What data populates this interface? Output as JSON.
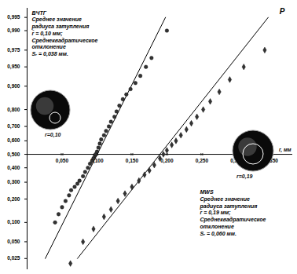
{
  "chart_data": {
    "type": "scatter",
    "x_label": "r, мм",
    "y_label": "P",
    "xlim": [
      0,
      0.38
    ],
    "xticks": [
      {
        "value": 0.05,
        "label": "0,050"
      },
      {
        "value": 0.1,
        "label": "0,100"
      },
      {
        "value": 0.15,
        "label": "0,150"
      },
      {
        "value": 0.2,
        "label": "0,200"
      },
      {
        "value": 0.25,
        "label": "0,250"
      },
      {
        "value": 0.3,
        "label": "0,300"
      },
      {
        "value": 0.35,
        "label": "0,350"
      }
    ],
    "ylim": [
      0.015,
      0.997
    ],
    "yticks": [
      {
        "value": 0.025,
        "label": "0,025"
      },
      {
        "value": 0.05,
        "label": "0,050"
      },
      {
        "value": 0.1,
        "label": "0,100"
      },
      {
        "value": 0.2,
        "label": "0,200"
      },
      {
        "value": 0.3,
        "label": "0,300"
      },
      {
        "value": 0.4,
        "label": "0,400"
      },
      {
        "value": 0.5,
        "label": "0,500"
      },
      {
        "value": 0.6,
        "label": "0,600"
      },
      {
        "value": 0.7,
        "label": "0,700"
      },
      {
        "value": 0.8,
        "label": "0,800"
      },
      {
        "value": 0.9,
        "label": "0,900"
      },
      {
        "value": 0.95,
        "label": "0,950"
      },
      {
        "value": 0.975,
        "label": "0,975"
      },
      {
        "value": 0.99,
        "label": "0,990"
      },
      {
        "value": 0.995,
        "label": "0,995"
      }
    ],
    "series": [
      {
        "name": "ВЧТГ",
        "color": "#333333",
        "marker": "circle",
        "annotation": [
          "Среднее значение",
          "радиуса затупления",
          "r̄ = 0,10 мм;",
          "Среднеквадратическое",
          "отклонение",
          "Sᵣ = 0,038 мм."
        ],
        "inset_label": "r=0,10",
        "x": [
          0.04,
          0.045,
          0.05,
          0.055,
          0.06,
          0.063,
          0.068,
          0.072,
          0.075,
          0.08,
          0.083,
          0.087,
          0.09,
          0.093,
          0.095,
          0.097,
          0.098,
          0.1,
          0.102,
          0.104,
          0.106,
          0.11,
          0.113,
          0.117,
          0.12,
          0.125,
          0.128,
          0.132,
          0.137,
          0.142,
          0.148,
          0.155,
          0.162,
          0.17,
          0.178,
          0.2
        ],
        "values": [
          0.1,
          0.13,
          0.16,
          0.19,
          0.22,
          0.25,
          0.27,
          0.29,
          0.31,
          0.34,
          0.37,
          0.4,
          0.43,
          0.45,
          0.47,
          0.49,
          0.5,
          0.52,
          0.55,
          0.58,
          0.61,
          0.64,
          0.67,
          0.7,
          0.73,
          0.76,
          0.79,
          0.82,
          0.85,
          0.87,
          0.89,
          0.91,
          0.93,
          0.95,
          0.965,
          0.99
        ],
        "fit_line": {
          "x": [
            0.026,
            0.198
          ],
          "values": [
            0.025,
            0.995
          ]
        }
      },
      {
        "name": "MWS",
        "color": "#333333",
        "marker": "diamond",
        "annotation": [
          "Среднее значение",
          "радиуса затупления",
          "r̄ = 0,19 мм;",
          "Среднеквадратическое",
          "отклонение",
          "Sᵣ = 0,060 мм."
        ],
        "inset_label": "r=0,19",
        "x": [
          0.062,
          0.08,
          0.095,
          0.11,
          0.12,
          0.13,
          0.14,
          0.15,
          0.16,
          0.168,
          0.175,
          0.182,
          0.19,
          0.195,
          0.2,
          0.207,
          0.213,
          0.22,
          0.228,
          0.235,
          0.243,
          0.252,
          0.262,
          0.275,
          0.29,
          0.31,
          0.34
        ],
        "values": [
          0.02,
          0.05,
          0.08,
          0.12,
          0.15,
          0.19,
          0.23,
          0.27,
          0.31,
          0.35,
          0.38,
          0.42,
          0.47,
          0.5,
          0.53,
          0.57,
          0.6,
          0.64,
          0.68,
          0.72,
          0.76,
          0.8,
          0.84,
          0.88,
          0.92,
          0.95,
          0.975
        ],
        "fit_line": {
          "x": [
            0.072,
            0.345
          ],
          "values": [
            0.025,
            0.995
          ]
        }
      }
    ]
  }
}
